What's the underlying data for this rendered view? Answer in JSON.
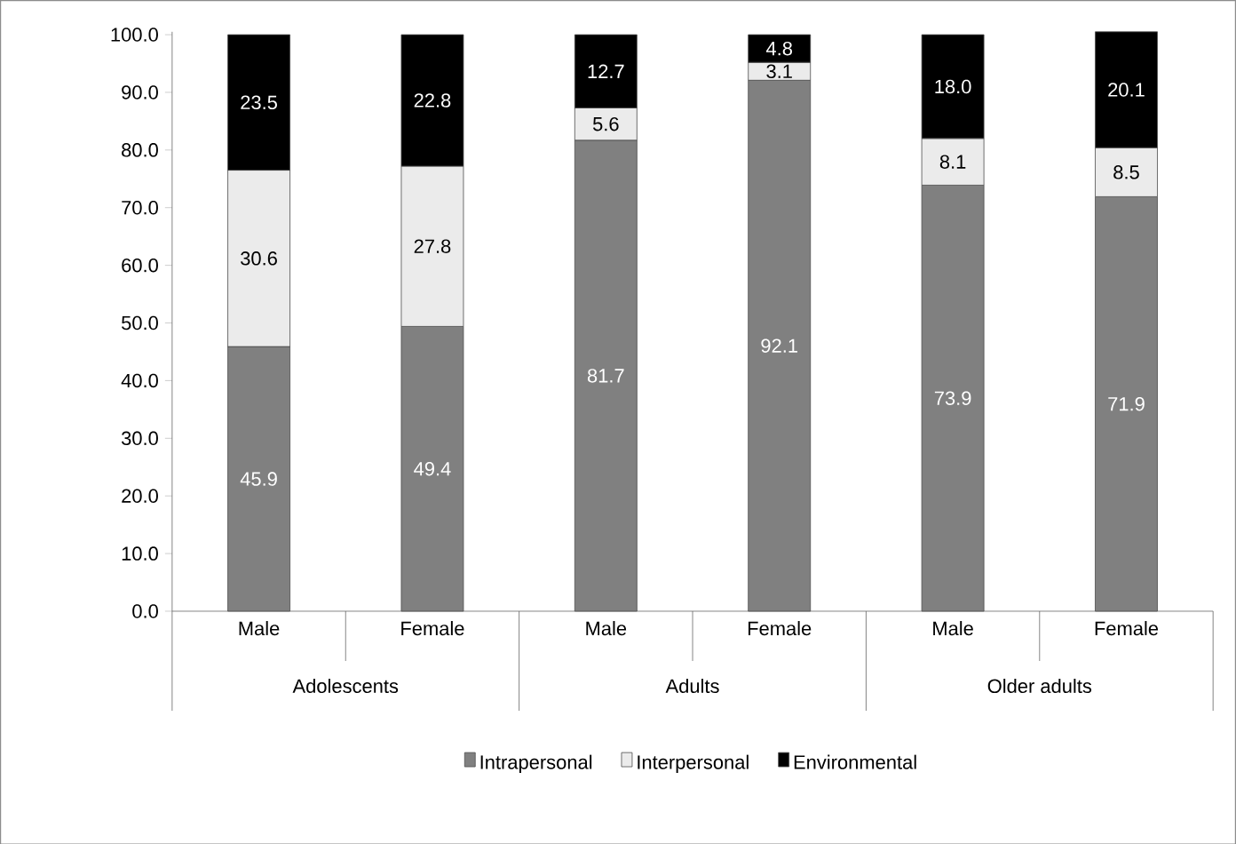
{
  "chart_data": {
    "type": "bar",
    "stacked": true,
    "categories": [
      "Male",
      "Female",
      "Male",
      "Female",
      "Male",
      "Female"
    ],
    "annotations": [
      "Adolescents",
      "Adults",
      "Older adults"
    ],
    "series": [
      {
        "name": "Intrapersonal",
        "color": "#808080",
        "values": [
          45.9,
          49.4,
          81.7,
          92.1,
          73.9,
          71.9
        ],
        "value_labels": [
          "45.9",
          "49.4",
          "81.7",
          "92.1",
          "73.9",
          "71.9"
        ]
      },
      {
        "name": "Interpersonal",
        "color": "#ebebeb",
        "values": [
          30.6,
          27.8,
          5.6,
          3.1,
          8.1,
          8.5
        ],
        "value_labels": [
          "30.6",
          "27.8",
          "5.6",
          "3.1",
          "8.1",
          "8.5"
        ]
      },
      {
        "name": "Environmental",
        "color": "#000000",
        "values": [
          23.5,
          22.8,
          12.7,
          4.8,
          18.0,
          20.1
        ],
        "value_labels": [
          "23.5",
          "22.8",
          "12.7",
          "4.8",
          "18.0",
          "20.1"
        ]
      }
    ],
    "ylim": [
      0,
      100.5
    ],
    "yticks": [
      {
        "value": 0,
        "label": "0.0"
      },
      {
        "value": 10,
        "label": "10.0"
      },
      {
        "value": 20,
        "label": "20.0"
      },
      {
        "value": 30,
        "label": "30.0"
      },
      {
        "value": 40,
        "label": "40.0"
      },
      {
        "value": 50,
        "label": "50.0"
      },
      {
        "value": 60,
        "label": "60.0"
      },
      {
        "value": 70,
        "label": "70.0"
      },
      {
        "value": 80,
        "label": "80.0"
      },
      {
        "value": 90,
        "label": "90.0"
      },
      {
        "value": 100,
        "label": "100.0"
      }
    ],
    "grid": false,
    "legend": "bottom"
  }
}
